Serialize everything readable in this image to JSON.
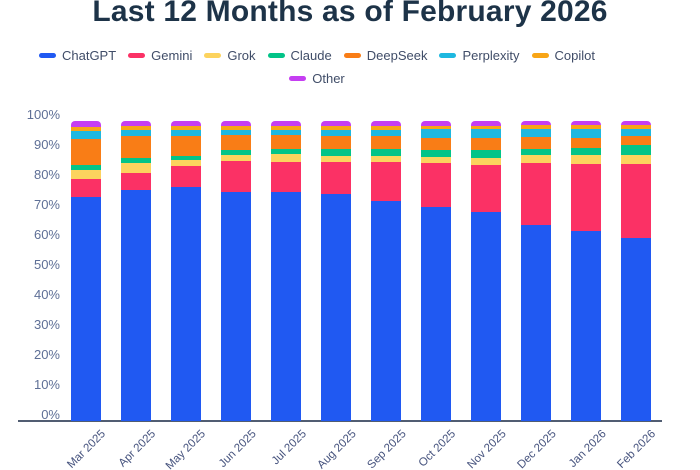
{
  "title": "Last 12 Months as of February 2026",
  "chart_data": {
    "type": "bar",
    "stacked": true,
    "title": "Last 12 Months as of February 2026",
    "xlabel": "",
    "ylabel": "",
    "ylim": [
      0,
      100
    ],
    "grid": false,
    "legend_position": "top",
    "y_ticks": [
      "0%",
      "10%",
      "20%",
      "30%",
      "40%",
      "50%",
      "60%",
      "70%",
      "80%",
      "90%",
      "100%"
    ],
    "categories": [
      "Mar 2025",
      "Apr 2025",
      "May 2025",
      "Jun 2025",
      "Jul 2025",
      "Aug 2025",
      "Sep 2025",
      "Oct 2025",
      "Nov 2025",
      "Dec 2025",
      "Jan 2026",
      "Feb 2026"
    ],
    "series": [
      {
        "name": "ChatGPT",
        "color": "#2059f2",
        "values": [
          74.8,
          77.0,
          77.9,
          76.5,
          76.3,
          75.8,
          73.5,
          71.3,
          69.7,
          65.2,
          63.2,
          61.0
        ]
      },
      {
        "name": "Gemini",
        "color": "#fb3165",
        "values": [
          5.9,
          5.8,
          7.1,
          10.1,
          10.0,
          10.5,
          13.0,
          14.8,
          15.8,
          20.8,
          22.6,
          24.6
        ]
      },
      {
        "name": "Grok",
        "color": "#fcd35e",
        "values": [
          3.0,
          3.2,
          1.9,
          2.0,
          2.6,
          2.2,
          1.8,
          1.9,
          2.2,
          2.8,
          3.0,
          3.2
        ]
      },
      {
        "name": "Claude",
        "color": "#02c488",
        "values": [
          1.7,
          1.7,
          1.4,
          1.7,
          1.9,
          2.2,
          2.5,
          2.2,
          2.5,
          2.0,
          2.3,
          3.1
        ]
      },
      {
        "name": "DeepSeek",
        "color": "#f97d16",
        "values": [
          8.6,
          7.3,
          6.7,
          5.0,
          4.4,
          4.4,
          4.2,
          4.1,
          4.1,
          4.0,
          3.2,
          3.1
        ]
      },
      {
        "name": "Perplexity",
        "color": "#1eb8e0",
        "values": [
          2.6,
          1.9,
          1.9,
          1.8,
          1.8,
          1.8,
          2.0,
          2.9,
          2.9,
          2.4,
          2.9,
          2.5
        ]
      },
      {
        "name": "Copilot",
        "color": "#f8a516",
        "values": [
          1.5,
          1.4,
          1.3,
          1.2,
          1.3,
          1.5,
          1.5,
          1.3,
          1.3,
          1.4,
          1.4,
          1.3
        ]
      },
      {
        "name": "Other",
        "color": "#c53ef2",
        "values": [
          1.9,
          1.7,
          1.8,
          1.7,
          1.7,
          1.6,
          1.5,
          1.5,
          1.5,
          1.4,
          1.4,
          1.2
        ]
      }
    ],
    "legend_rows": [
      [
        "ChatGPT",
        "Gemini",
        "Grok",
        "Claude",
        "DeepSeek",
        "Perplexity",
        "Copilot"
      ],
      [
        "Other"
      ]
    ]
  }
}
